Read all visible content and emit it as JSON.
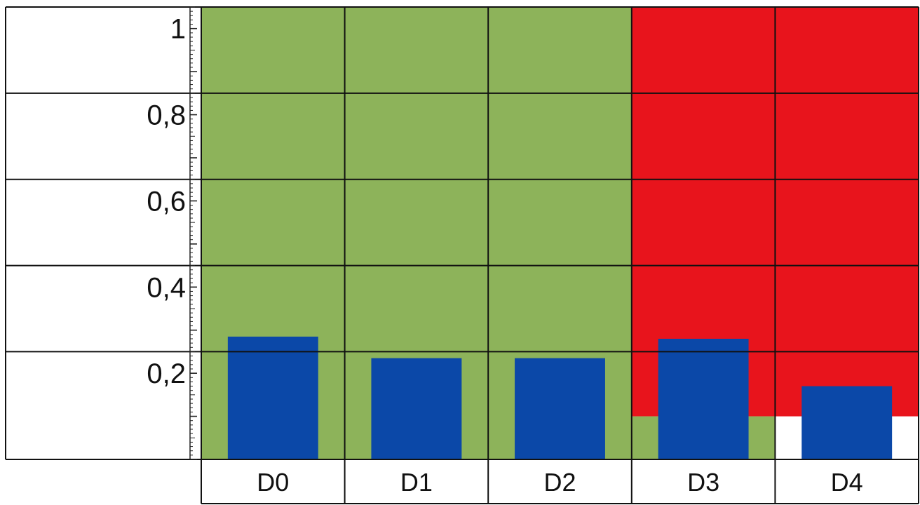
{
  "chart_data": {
    "type": "bar",
    "categories": [
      "D0",
      "D1",
      "D2",
      "D3",
      "D4"
    ],
    "values": [
      0.285,
      0.235,
      0.235,
      0.28,
      0.17
    ],
    "ylim": [
      0,
      1.05
    ],
    "y_ticks": [
      {
        "value": 0.2,
        "label": "0,2"
      },
      {
        "value": 0.4,
        "label": "0,4"
      },
      {
        "value": 0.6,
        "label": "0,6"
      },
      {
        "value": 0.8,
        "label": "0,8"
      },
      {
        "value": 1.0,
        "label": "1"
      }
    ],
    "grid": true,
    "bar_color": "#0b48a8",
    "background_zones": [
      {
        "categories": [
          "D0",
          "D1",
          "D2"
        ],
        "color": "#8db35a",
        "from": 0,
        "to": 1.05
      },
      {
        "categories": [
          "D3",
          "D4"
        ],
        "color": "#e8141c",
        "from": 0.1,
        "to": 1.05
      },
      {
        "categories": [
          "D3"
        ],
        "color": "#8db35a",
        "from": 0,
        "to": 0.1
      }
    ]
  }
}
